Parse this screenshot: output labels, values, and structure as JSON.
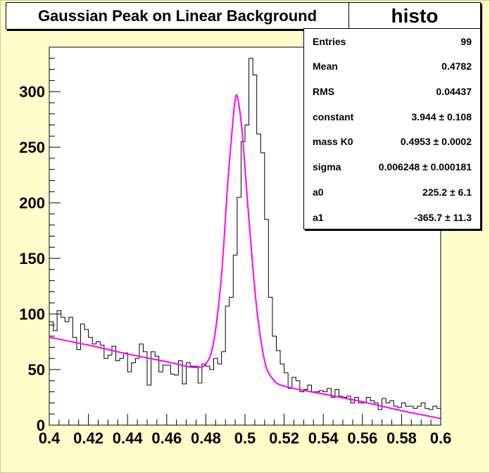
{
  "title": "Gaussian Peak on Linear Background",
  "histogram_name": "histo",
  "stats": [
    {
      "label": "Entries",
      "value": "99"
    },
    {
      "label": "Mean",
      "value": "0.4782"
    },
    {
      "label": "RMS",
      "value": "0.04437"
    },
    {
      "label": "constant",
      "value": "3.944 ± 0.108"
    },
    {
      "label": "mass K0",
      "value": "0.4953 ± 0.0002"
    },
    {
      "label": "sigma",
      "value": "0.006248 ± 0.000181"
    },
    {
      "label": "a0",
      "value": "225.2 ± 6.1"
    },
    {
      "label": "a1",
      "value": "-365.7 ± 11.3"
    }
  ],
  "colors": {
    "background": "#ffffcc",
    "histogram": "#000000",
    "fit": "#ff00ff"
  },
  "chart_data": {
    "type": "line",
    "title": "Gaussian Peak on Linear Background",
    "xlabel": "",
    "ylabel": "",
    "xlim": [
      0.4,
      0.6
    ],
    "ylim": [
      0,
      340
    ],
    "x_ticks": [
      0.4,
      0.42,
      0.44,
      0.46,
      0.48,
      0.5,
      0.52,
      0.54,
      0.56,
      0.58,
      0.6
    ],
    "x_tick_labels": [
      "0.4",
      "0.42",
      "0.44",
      "0.46",
      "0.48",
      "0.5",
      "0.52",
      "0.54",
      "0.56",
      "0.58",
      "0.6"
    ],
    "y_ticks": [
      0,
      50,
      100,
      150,
      200,
      250,
      300
    ],
    "y_tick_labels": [
      "0",
      "50",
      "100",
      "150",
      "200",
      "250",
      "300"
    ],
    "grid": false,
    "legend": "top-right",
    "series": [
      {
        "style": "histogram",
        "color": "#000000",
        "bin_range": [
          0.4,
          0.6
        ],
        "values": [
          93,
          85,
          103,
          97,
          93,
          97,
          79,
          68,
          91,
          86,
          79,
          73,
          75,
          72,
          60,
          63,
          71,
          58,
          60,
          65,
          48,
          56,
          60,
          73,
          66,
          36,
          66,
          62,
          48,
          54,
          54,
          46,
          45,
          58,
          37,
          56,
          53,
          53,
          38,
          55,
          53,
          50,
          60,
          55,
          66,
          107,
          115,
          153,
          205,
          255,
          270,
          330,
          315,
          262,
          245,
          185,
          115,
          80,
          67,
          55,
          47,
          33,
          43,
          40,
          30,
          32,
          36,
          30,
          30,
          31,
          30,
          33,
          25,
          32,
          26,
          25,
          26,
          20,
          25,
          20,
          20,
          25,
          22,
          20,
          14,
          24,
          20,
          22,
          17,
          16,
          20,
          17,
          17,
          15,
          17,
          20,
          15,
          14,
          17,
          15
        ]
      },
      {
        "style": "curve",
        "color": "#ff00ff",
        "x": [
          0.4,
          0.42,
          0.44,
          0.46,
          0.47,
          0.475,
          0.48,
          0.484,
          0.488,
          0.491,
          0.4935,
          0.4953,
          0.497,
          0.499,
          0.502,
          0.506,
          0.51,
          0.514,
          0.52,
          0.54,
          0.56,
          0.58,
          0.6
        ],
        "y": [
          79,
          72,
          64,
          57,
          53,
          52,
          55,
          75,
          135,
          213,
          267,
          296,
          287,
          255,
          185,
          105,
          58,
          42,
          35,
          28,
          21,
          13,
          6
        ]
      }
    ]
  }
}
